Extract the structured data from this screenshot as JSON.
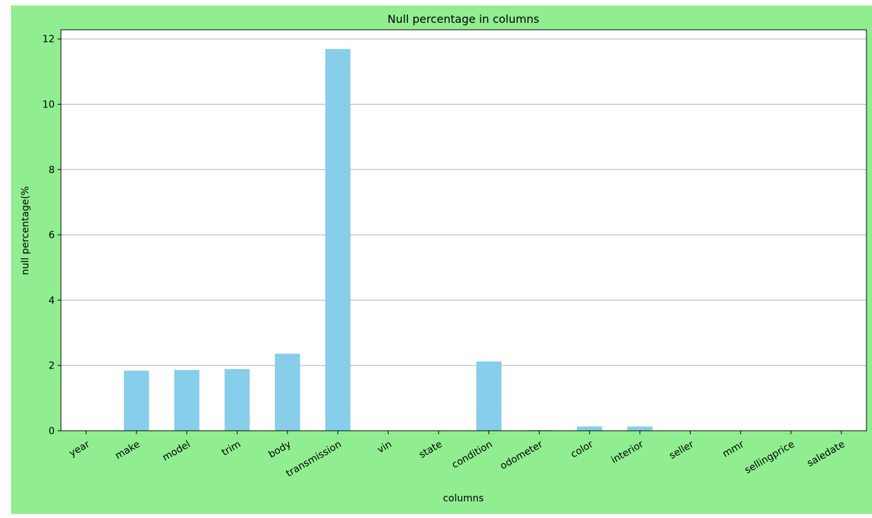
{
  "colors": {
    "page_bg": "#ffffff",
    "figure_bg": "#90ee90",
    "axes_bg": "#ffffff",
    "bar": "#87ceeb",
    "grid": "#b0b0b0",
    "spine": "#000000"
  },
  "chart_data": {
    "type": "bar",
    "title": "Null percentage in columns",
    "xlabel": "columns",
    "ylabel": "null percentage(%",
    "categories": [
      "year",
      "make",
      "model",
      "trim",
      "body",
      "transmission",
      "vin",
      "state",
      "condition",
      "odometer",
      "color",
      "interior",
      "seller",
      "mmr",
      "sellingprice",
      "saledate"
    ],
    "values": [
      0,
      1.84,
      1.86,
      1.89,
      2.36,
      11.69,
      0.0,
      0.0,
      2.12,
      0.02,
      0.13,
      0.13,
      0,
      0.0,
      0.0,
      0.0
    ],
    "ylim": [
      0,
      12.28
    ],
    "yticks": [
      0,
      2,
      4,
      6,
      8,
      10,
      12
    ],
    "grid": "horizontal",
    "legend": "none"
  }
}
